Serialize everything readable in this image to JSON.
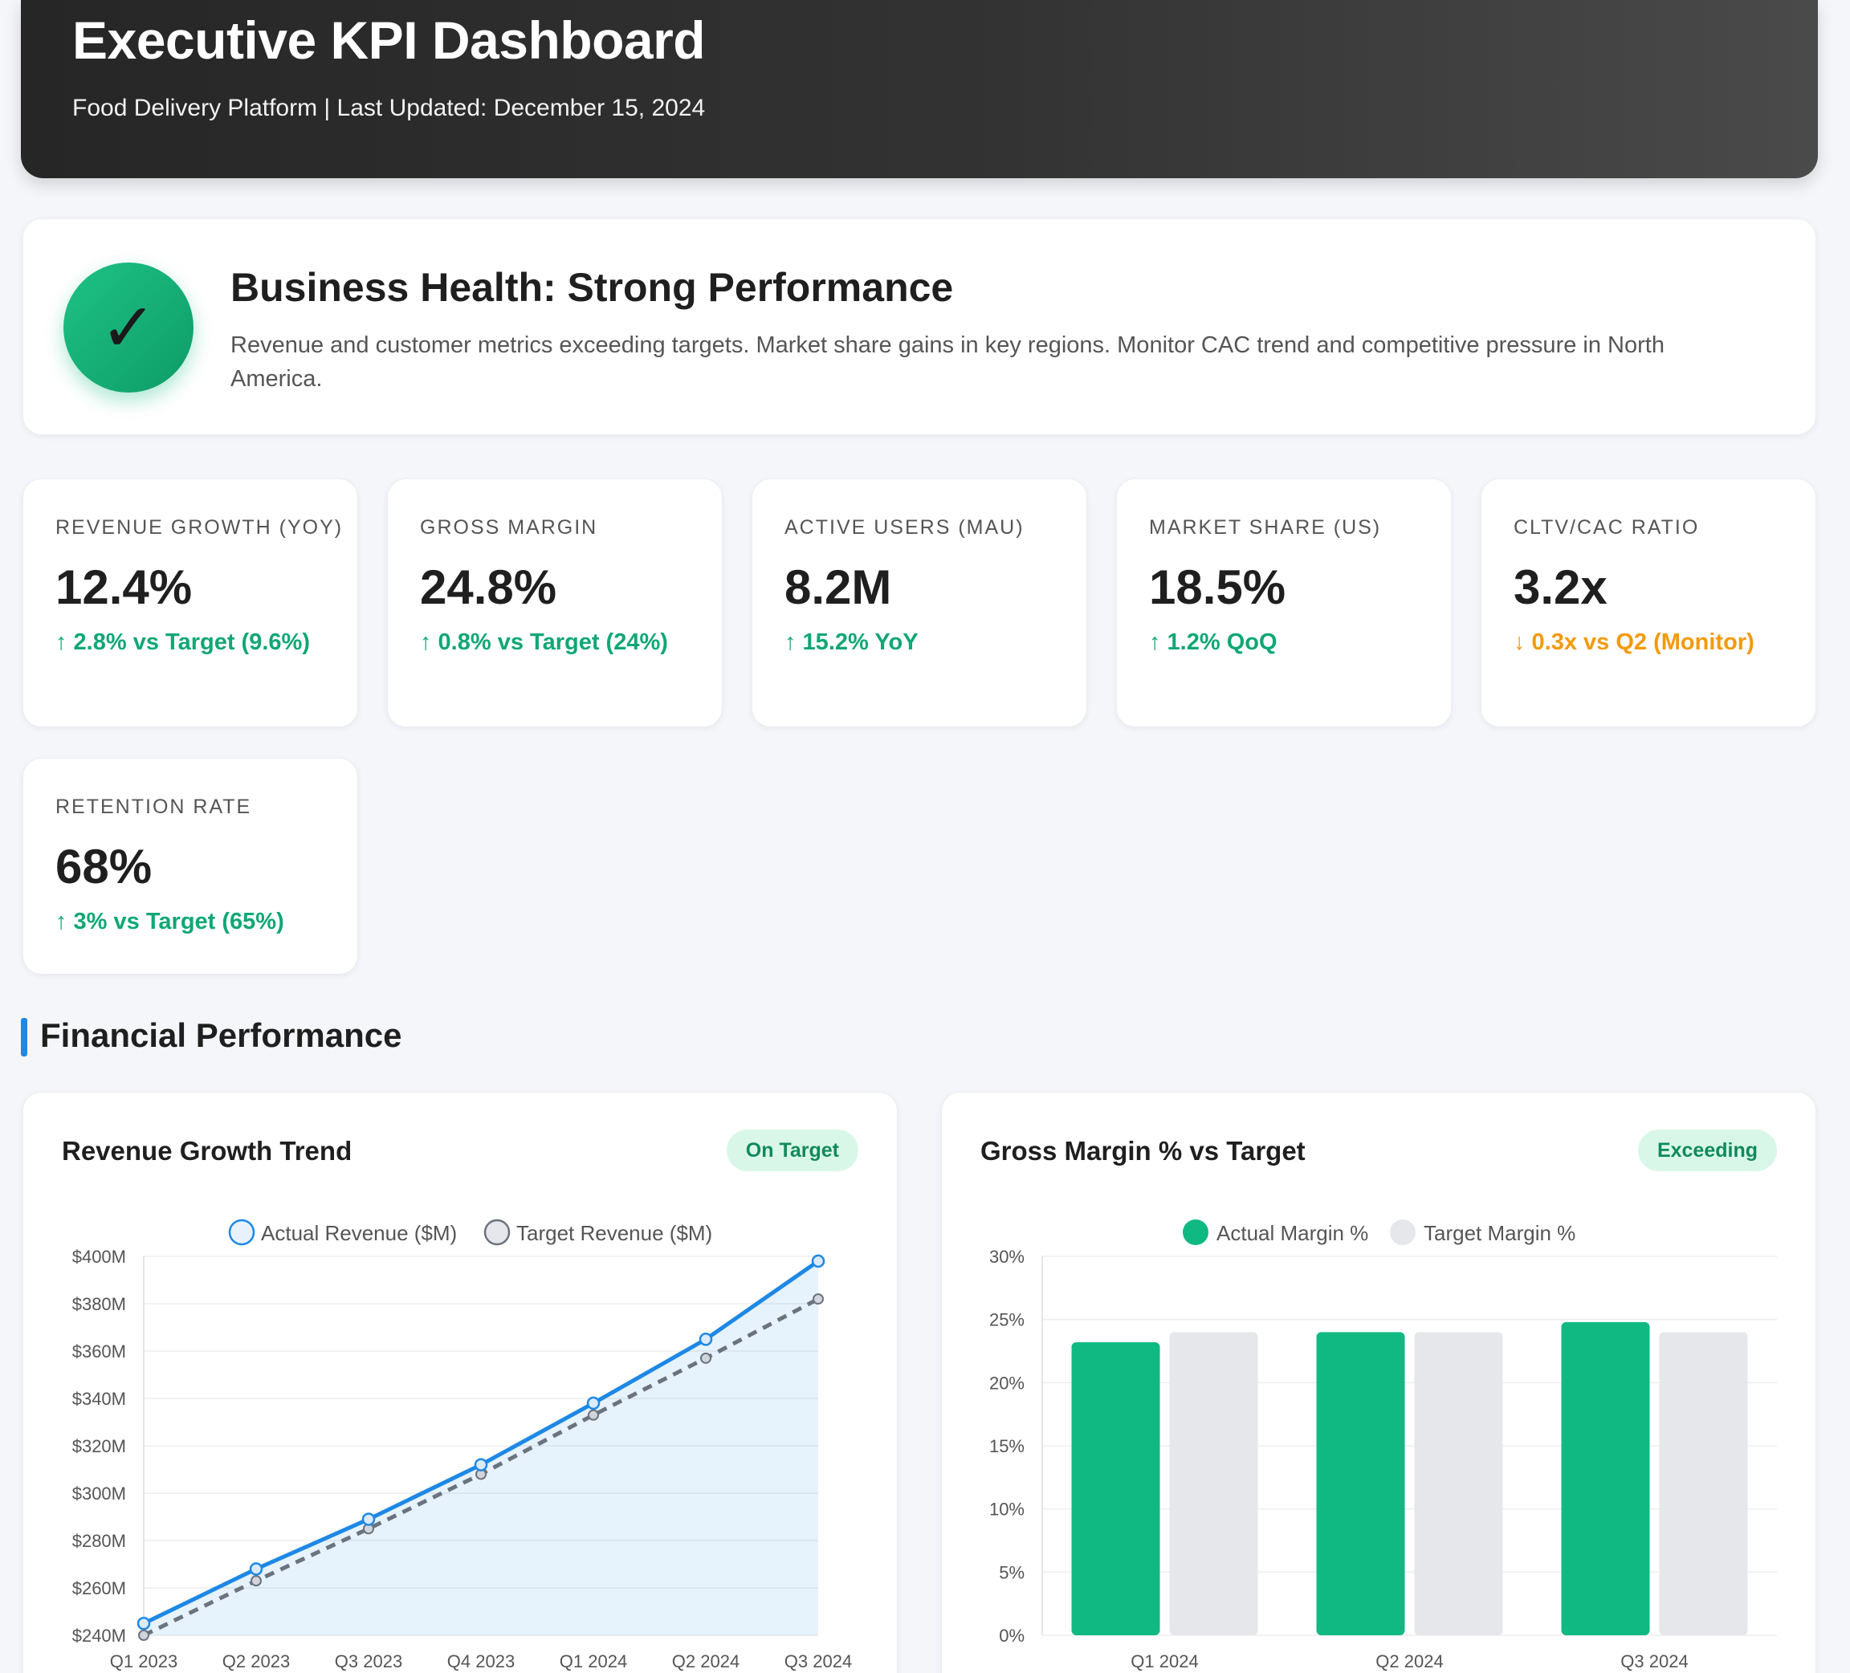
{
  "header": {
    "title": "Executive KPI Dashboard",
    "subtitle": "Food Delivery Platform | Last Updated: December 15, 2024"
  },
  "health": {
    "icon": "checkmark-icon",
    "icon_glyph": "✓",
    "title": "Business Health: Strong Performance",
    "description": "Revenue and customer metrics exceeding targets. Market share gains in key regions. Monitor CAC trend and competitive pressure in North America.",
    "color": "#10b981"
  },
  "kpis": [
    {
      "label": "Revenue Growth (YoY)",
      "value": "12.4%",
      "delta": "↑ 2.8% vs Target (9.6%)",
      "status": "positive"
    },
    {
      "label": "Gross Margin",
      "value": "24.8%",
      "delta": "↑ 0.8% vs Target (24%)",
      "status": "positive"
    },
    {
      "label": "Active Users (MAU)",
      "value": "8.2M",
      "delta": "↑ 15.2% YoY",
      "status": "positive"
    },
    {
      "label": "Market Share (US)",
      "value": "18.5%",
      "delta": "↑ 1.2% QoQ",
      "status": "positive"
    },
    {
      "label": "CLTV/CAC Ratio",
      "value": "3.2x",
      "delta": "↓ 0.3x vs Q2 (Monitor)",
      "status": "warning"
    },
    {
      "label": "Retention Rate",
      "value": "68%",
      "delta": "↑ 3% vs Target (65%)",
      "status": "positive"
    }
  ],
  "colors": {
    "positive": "#10a774",
    "warning": "#f29a0c",
    "accent": "#1e88e5",
    "bar_actual": "#10b981",
    "bar_target": "#e5e7eb",
    "line_target": "#6b7280"
  },
  "section": {
    "title": "Financial Performance"
  },
  "revenue_chart": {
    "title": "Revenue Growth Trend",
    "badge": "On Target"
  },
  "margin_chart": {
    "title": "Gross Margin % vs Target",
    "badge": "Exceeding"
  },
  "chart_data": [
    {
      "type": "line",
      "title": "Revenue Growth Trend",
      "categories": [
        "Q1 2023",
        "Q2 2023",
        "Q3 2023",
        "Q4 2023",
        "Q1 2024",
        "Q2 2024",
        "Q3 2024"
      ],
      "series": [
        {
          "name": "Actual Revenue ($M)",
          "values": [
            245,
            268,
            289,
            312,
            338,
            365,
            398
          ]
        },
        {
          "name": "Target Revenue ($M)",
          "values": [
            240,
            263,
            285,
            308,
            333,
            357,
            382
          ]
        }
      ],
      "ylim": [
        240,
        400
      ],
      "yticks": [
        "$240M",
        "$260M",
        "$280M",
        "$300M",
        "$320M",
        "$340M",
        "$360M",
        "$380M",
        "$400M"
      ],
      "legend": "top",
      "grid": true
    },
    {
      "type": "bar",
      "title": "Gross Margin % vs Target",
      "categories": [
        "Q1 2024",
        "Q2 2024",
        "Q3 2024"
      ],
      "series": [
        {
          "name": "Actual Margin %",
          "values": [
            23.2,
            24.0,
            24.8
          ]
        },
        {
          "name": "Target Margin %",
          "values": [
            24,
            24,
            24
          ]
        }
      ],
      "ylim": [
        0,
        30
      ],
      "yticks": [
        "0%",
        "5%",
        "10%",
        "15%",
        "20%",
        "25%",
        "30%"
      ],
      "legend": "top",
      "grid": true
    }
  ]
}
